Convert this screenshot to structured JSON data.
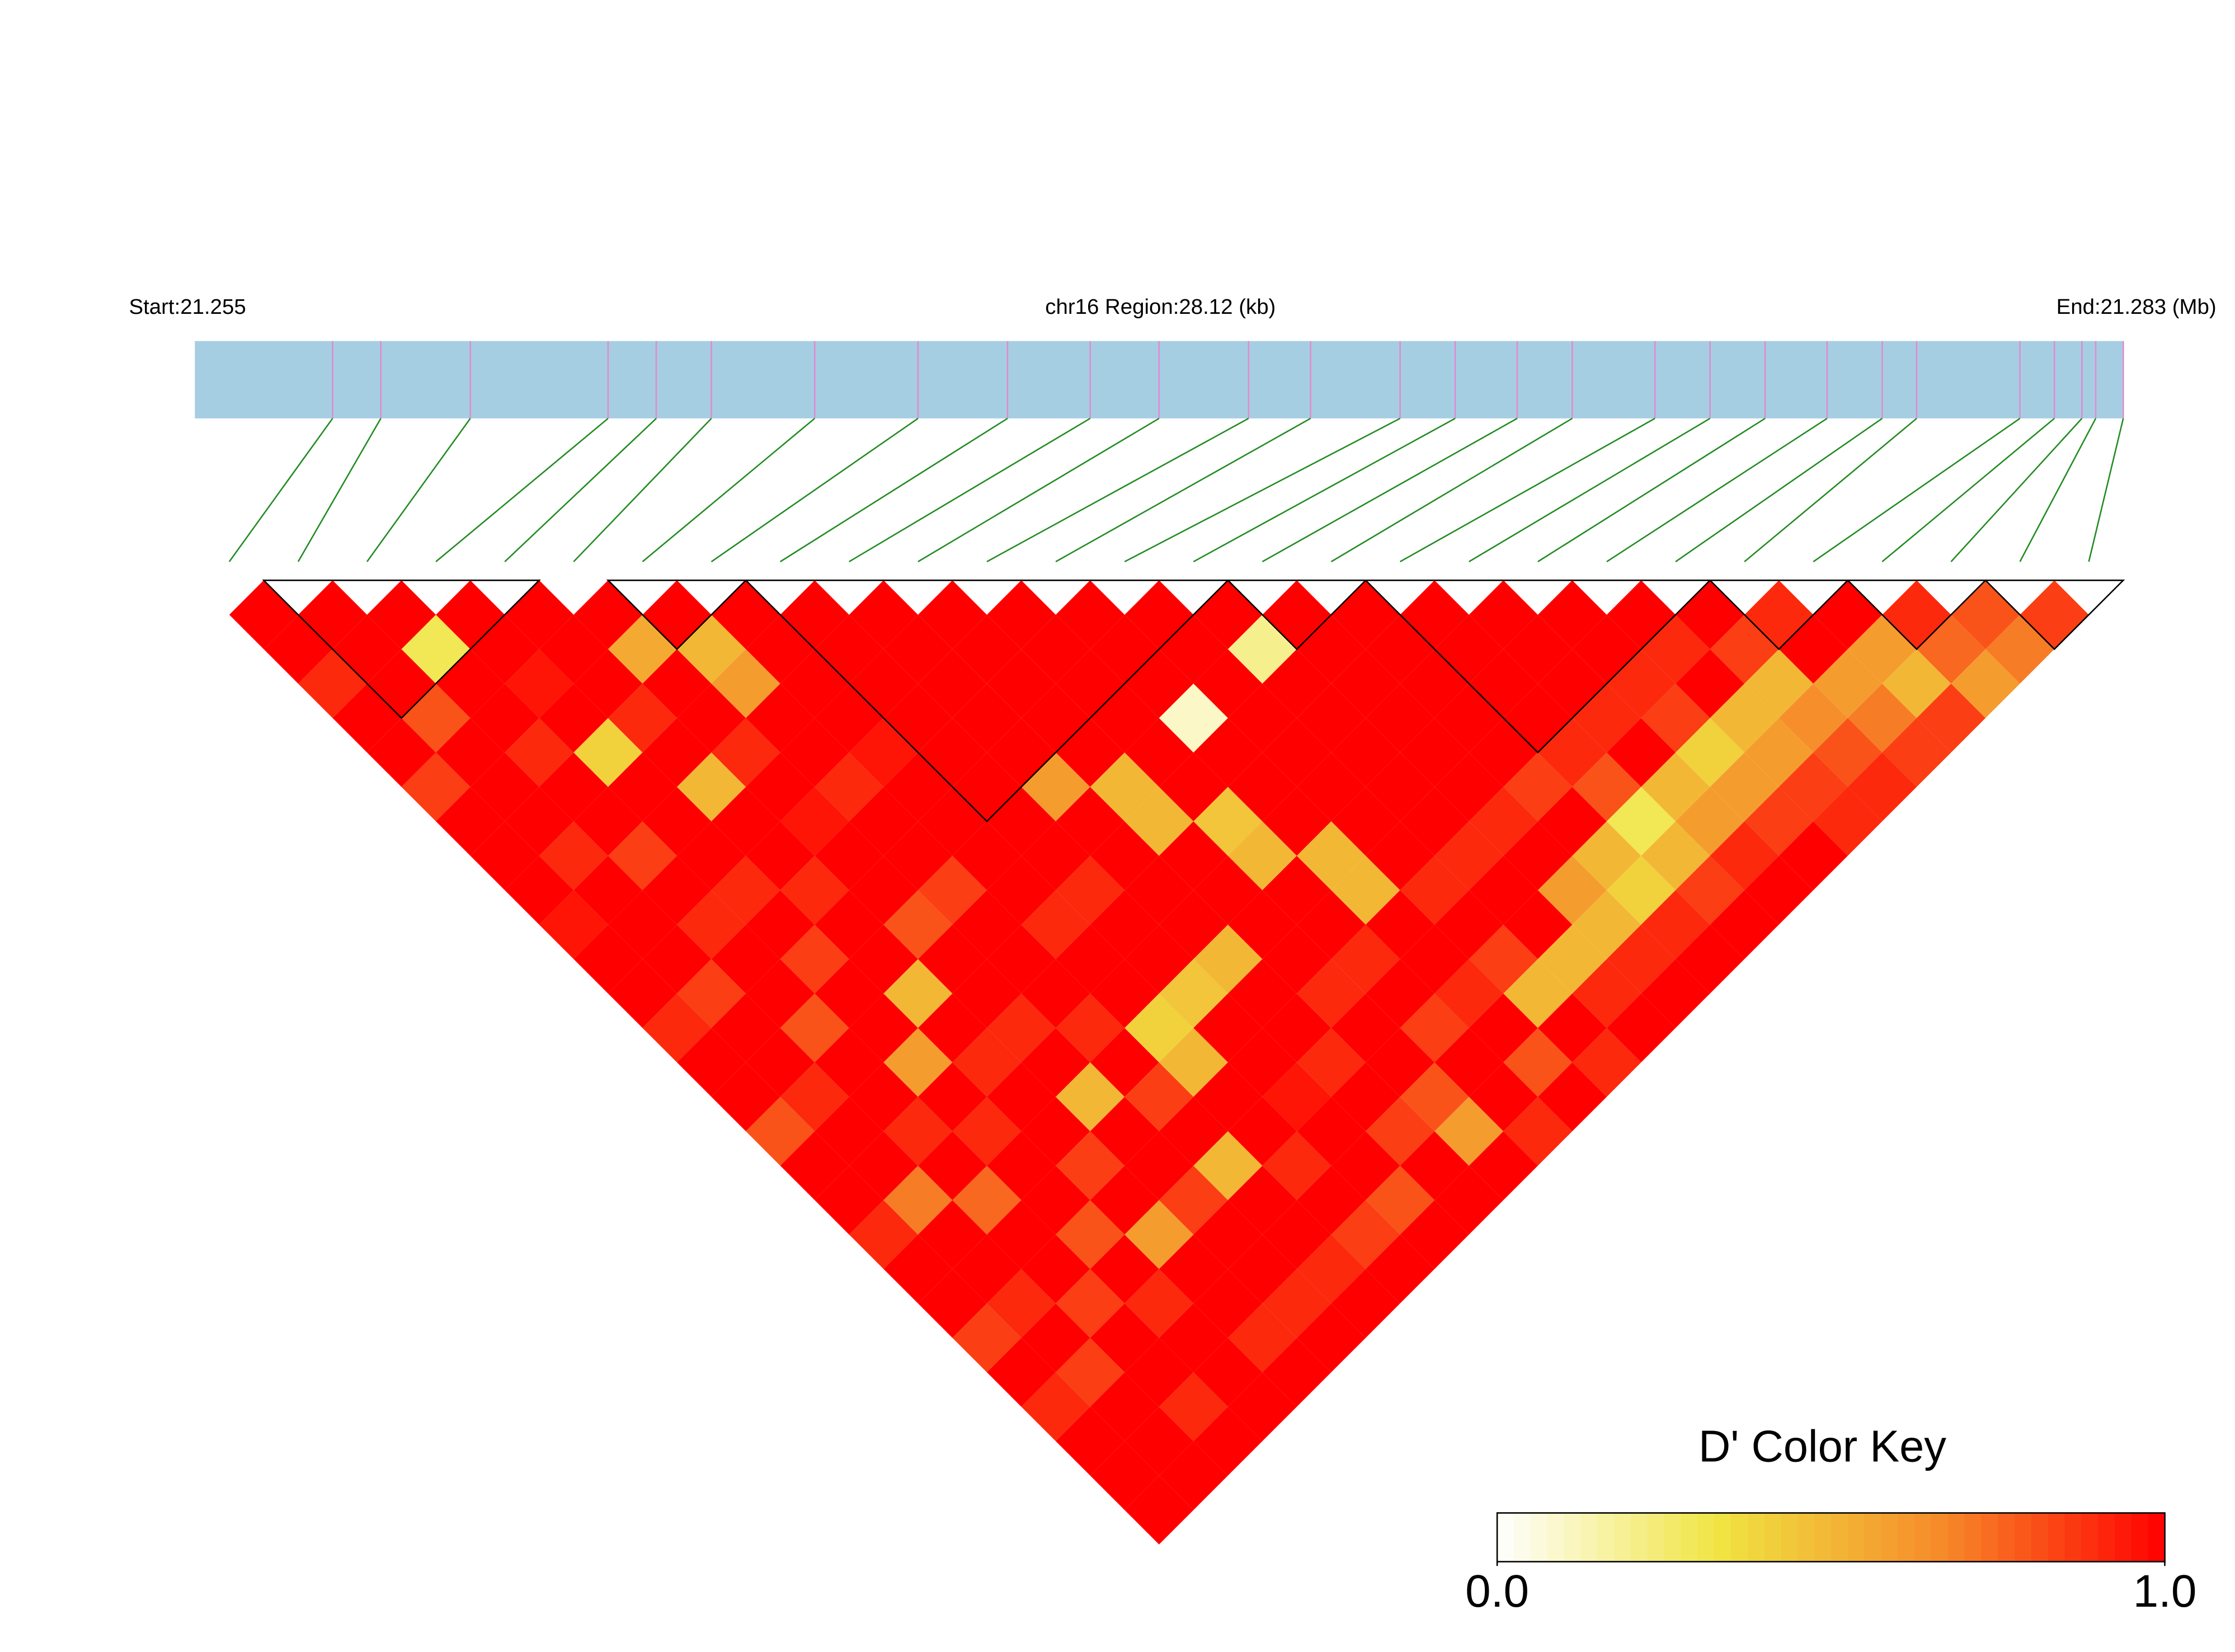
{
  "chart_data": {
    "type": "ld-heatmap",
    "title": "chr16 Region:28.12 (kb)",
    "start_label": "Start:21.255",
    "end_label": "End:21.283 (Mb)",
    "xlim": [
      21.255,
      21.283
    ],
    "positions": [
      21.257,
      21.2577,
      21.259,
      21.261,
      21.2617,
      21.2625,
      21.264,
      21.2655,
      21.2668,
      21.268,
      21.269,
      21.2703,
      21.2712,
      21.2725,
      21.2733,
      21.2742,
      21.275,
      21.2762,
      21.277,
      21.2778,
      21.2787,
      21.2795,
      21.28,
      21.2815,
      21.282,
      21.2824,
      21.2826,
      21.283
    ],
    "ld": [
      [
        1,
        1,
        0.9,
        1,
        1,
        0.85,
        1,
        1,
        1,
        0.95,
        1,
        1,
        0.9,
        1,
        1,
        0.8,
        1,
        1,
        0.9,
        1,
        1,
        0.85,
        1,
        0.9,
        1,
        1,
        1
      ],
      [
        1,
        1,
        1,
        0.8,
        1,
        1,
        1,
        0.9,
        1,
        1,
        1,
        0.85,
        1,
        1,
        0.9,
        1,
        1,
        0.7,
        1,
        1,
        0.9,
        1,
        0.85,
        1,
        1,
        1
      ],
      [
        1,
        0.3,
        1,
        1,
        0.9,
        1,
        1,
        0.85,
        1,
        0.9,
        1,
        1,
        0.8,
        1,
        1,
        0.9,
        1,
        0.75,
        1,
        1,
        0.85,
        1,
        1,
        0.9,
        1
      ],
      [
        1,
        1,
        0.95,
        1,
        0.4,
        1,
        1,
        1,
        0.9,
        1,
        0.85,
        1,
        1,
        0.6,
        1,
        0.9,
        1,
        1,
        0.8,
        1,
        0.9,
        1,
        1,
        1
      ],
      [
        1,
        1,
        1,
        0.9,
        1,
        0.5,
        1,
        1,
        0.9,
        1,
        1,
        0.5,
        1,
        0.9,
        1,
        1,
        0.85,
        1,
        0.6,
        1,
        1,
        0.9,
        1
      ],
      [
        1,
        0.55,
        1,
        1,
        0.9,
        1,
        0.95,
        1,
        1,
        0.8,
        1,
        1,
        0.9,
        1,
        0.5,
        1,
        1,
        0.85,
        1,
        1,
        0.9,
        1
      ],
      [
        1,
        0.5,
        0.6,
        1,
        1,
        0.9,
        1,
        1,
        0.85,
        1,
        1,
        1,
        0.9,
        1,
        0.85,
        1,
        0.5,
        1,
        1,
        0.9,
        1
      ],
      [
        1,
        1,
        1,
        1,
        0.95,
        1,
        1,
        1,
        1,
        0.9,
        1,
        1,
        0.4,
        0.5,
        1,
        1,
        0.9,
        1,
        0.85,
        1
      ],
      [
        1,
        1,
        1,
        1,
        1,
        1,
        1,
        1,
        0.9,
        1,
        1,
        0.45,
        1,
        1,
        0.95,
        1,
        1,
        0.8,
        1
      ],
      [
        1,
        1,
        1,
        1,
        1,
        0.6,
        1,
        1,
        1,
        1,
        0.5,
        1,
        1,
        0.9,
        1,
        0.85,
        1,
        1
      ],
      [
        1,
        1,
        1,
        1,
        1,
        0.5,
        0.5,
        1,
        1,
        1,
        1,
        0.9,
        1,
        1,
        0.8,
        0.6,
        1
      ],
      [
        1,
        1,
        1,
        1,
        1,
        1,
        0.45,
        0.5,
        1,
        1,
        0.9,
        1,
        0.85,
        1,
        1,
        0.9
      ],
      [
        1,
        1,
        1,
        0.1,
        1,
        1,
        1,
        0.5,
        0.5,
        1,
        1,
        0.9,
        1,
        0.8,
        1
      ],
      [
        1,
        1,
        1,
        1,
        1,
        1,
        1,
        1,
        0.9,
        1,
        0.85,
        0.5,
        1,
        0.9
      ],
      [
        1,
        0.2,
        1,
        1,
        1,
        1,
        1,
        0.9,
        1,
        1,
        0.5,
        0.9,
        1
      ],
      [
        1,
        1,
        1,
        1,
        1,
        1,
        0.9,
        1,
        0.6,
        0.5,
        0.9,
        1
      ],
      [
        1,
        1,
        1,
        1,
        1,
        0.85,
        1,
        0.5,
        0.4,
        0.9,
        1
      ],
      [
        1,
        1,
        1,
        1,
        0.9,
        0.8,
        0.3,
        0.5,
        0.85,
        1
      ],
      [
        1,
        1,
        1,
        0.9,
        1,
        0.5,
        0.6,
        0.9,
        1
      ],
      [
        1,
        1,
        0.9,
        0.85,
        0.4,
        0.6,
        0.85,
        1
      ],
      [
        1,
        0.9,
        1,
        0.5,
        0.6,
        0.85,
        0.9
      ],
      [
        1,
        0.85,
        0.5,
        0.65,
        0.8,
        0.9
      ],
      [
        0.9,
        1,
        0.6,
        0.7,
        0.85
      ],
      [
        1,
        0.6,
        0.5,
        0.85
      ],
      [
        0.9,
        0.75,
        0.6
      ],
      [
        0.8,
        0.7
      ],
      [
        0.85
      ]
    ],
    "blocks": [
      [
        1,
        4
      ],
      [
        6,
        7
      ],
      [
        8,
        14
      ],
      [
        15,
        16
      ],
      [
        17,
        21
      ],
      [
        22,
        23
      ],
      [
        24,
        25
      ],
      [
        26,
        27
      ]
    ],
    "colors": [
      "#ffffff",
      "#f0e442",
      "#f68a2a",
      "#ff0000"
    ],
    "bar_color": "#a6cee3",
    "snp_line_color": "#e08ad0",
    "connector_color": "#228b22",
    "key_title": "D' Color Key",
    "key_lim": [
      0,
      1
    ],
    "key_ticks": [
      {
        "value": 0,
        "label": "0.0"
      },
      {
        "value": 1,
        "label": "1.0"
      }
    ]
  }
}
